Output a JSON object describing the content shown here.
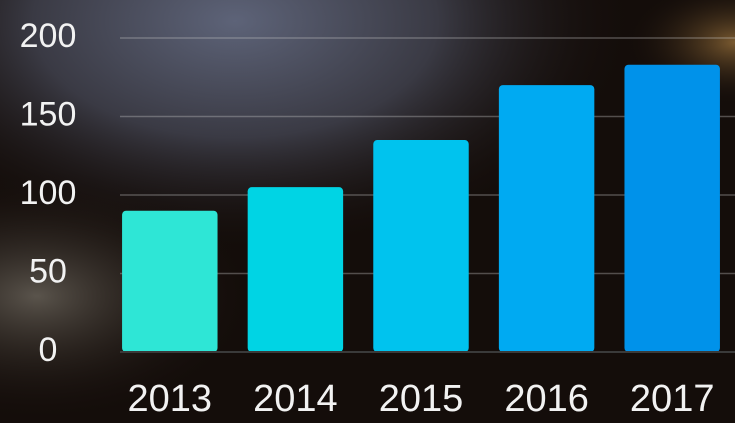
{
  "chart_data": {
    "type": "bar",
    "categories": [
      "2013",
      "2014",
      "2015",
      "2016",
      "2017"
    ],
    "values": [
      90,
      105,
      135,
      170,
      183
    ],
    "colors": [
      "#2ee6d6",
      "#00d4e4",
      "#00c3ee",
      "#00aaf2",
      "#0092ea"
    ],
    "ylim": [
      0,
      200
    ],
    "yticks": [
      0,
      50,
      100,
      150,
      200
    ],
    "grid": true
  }
}
